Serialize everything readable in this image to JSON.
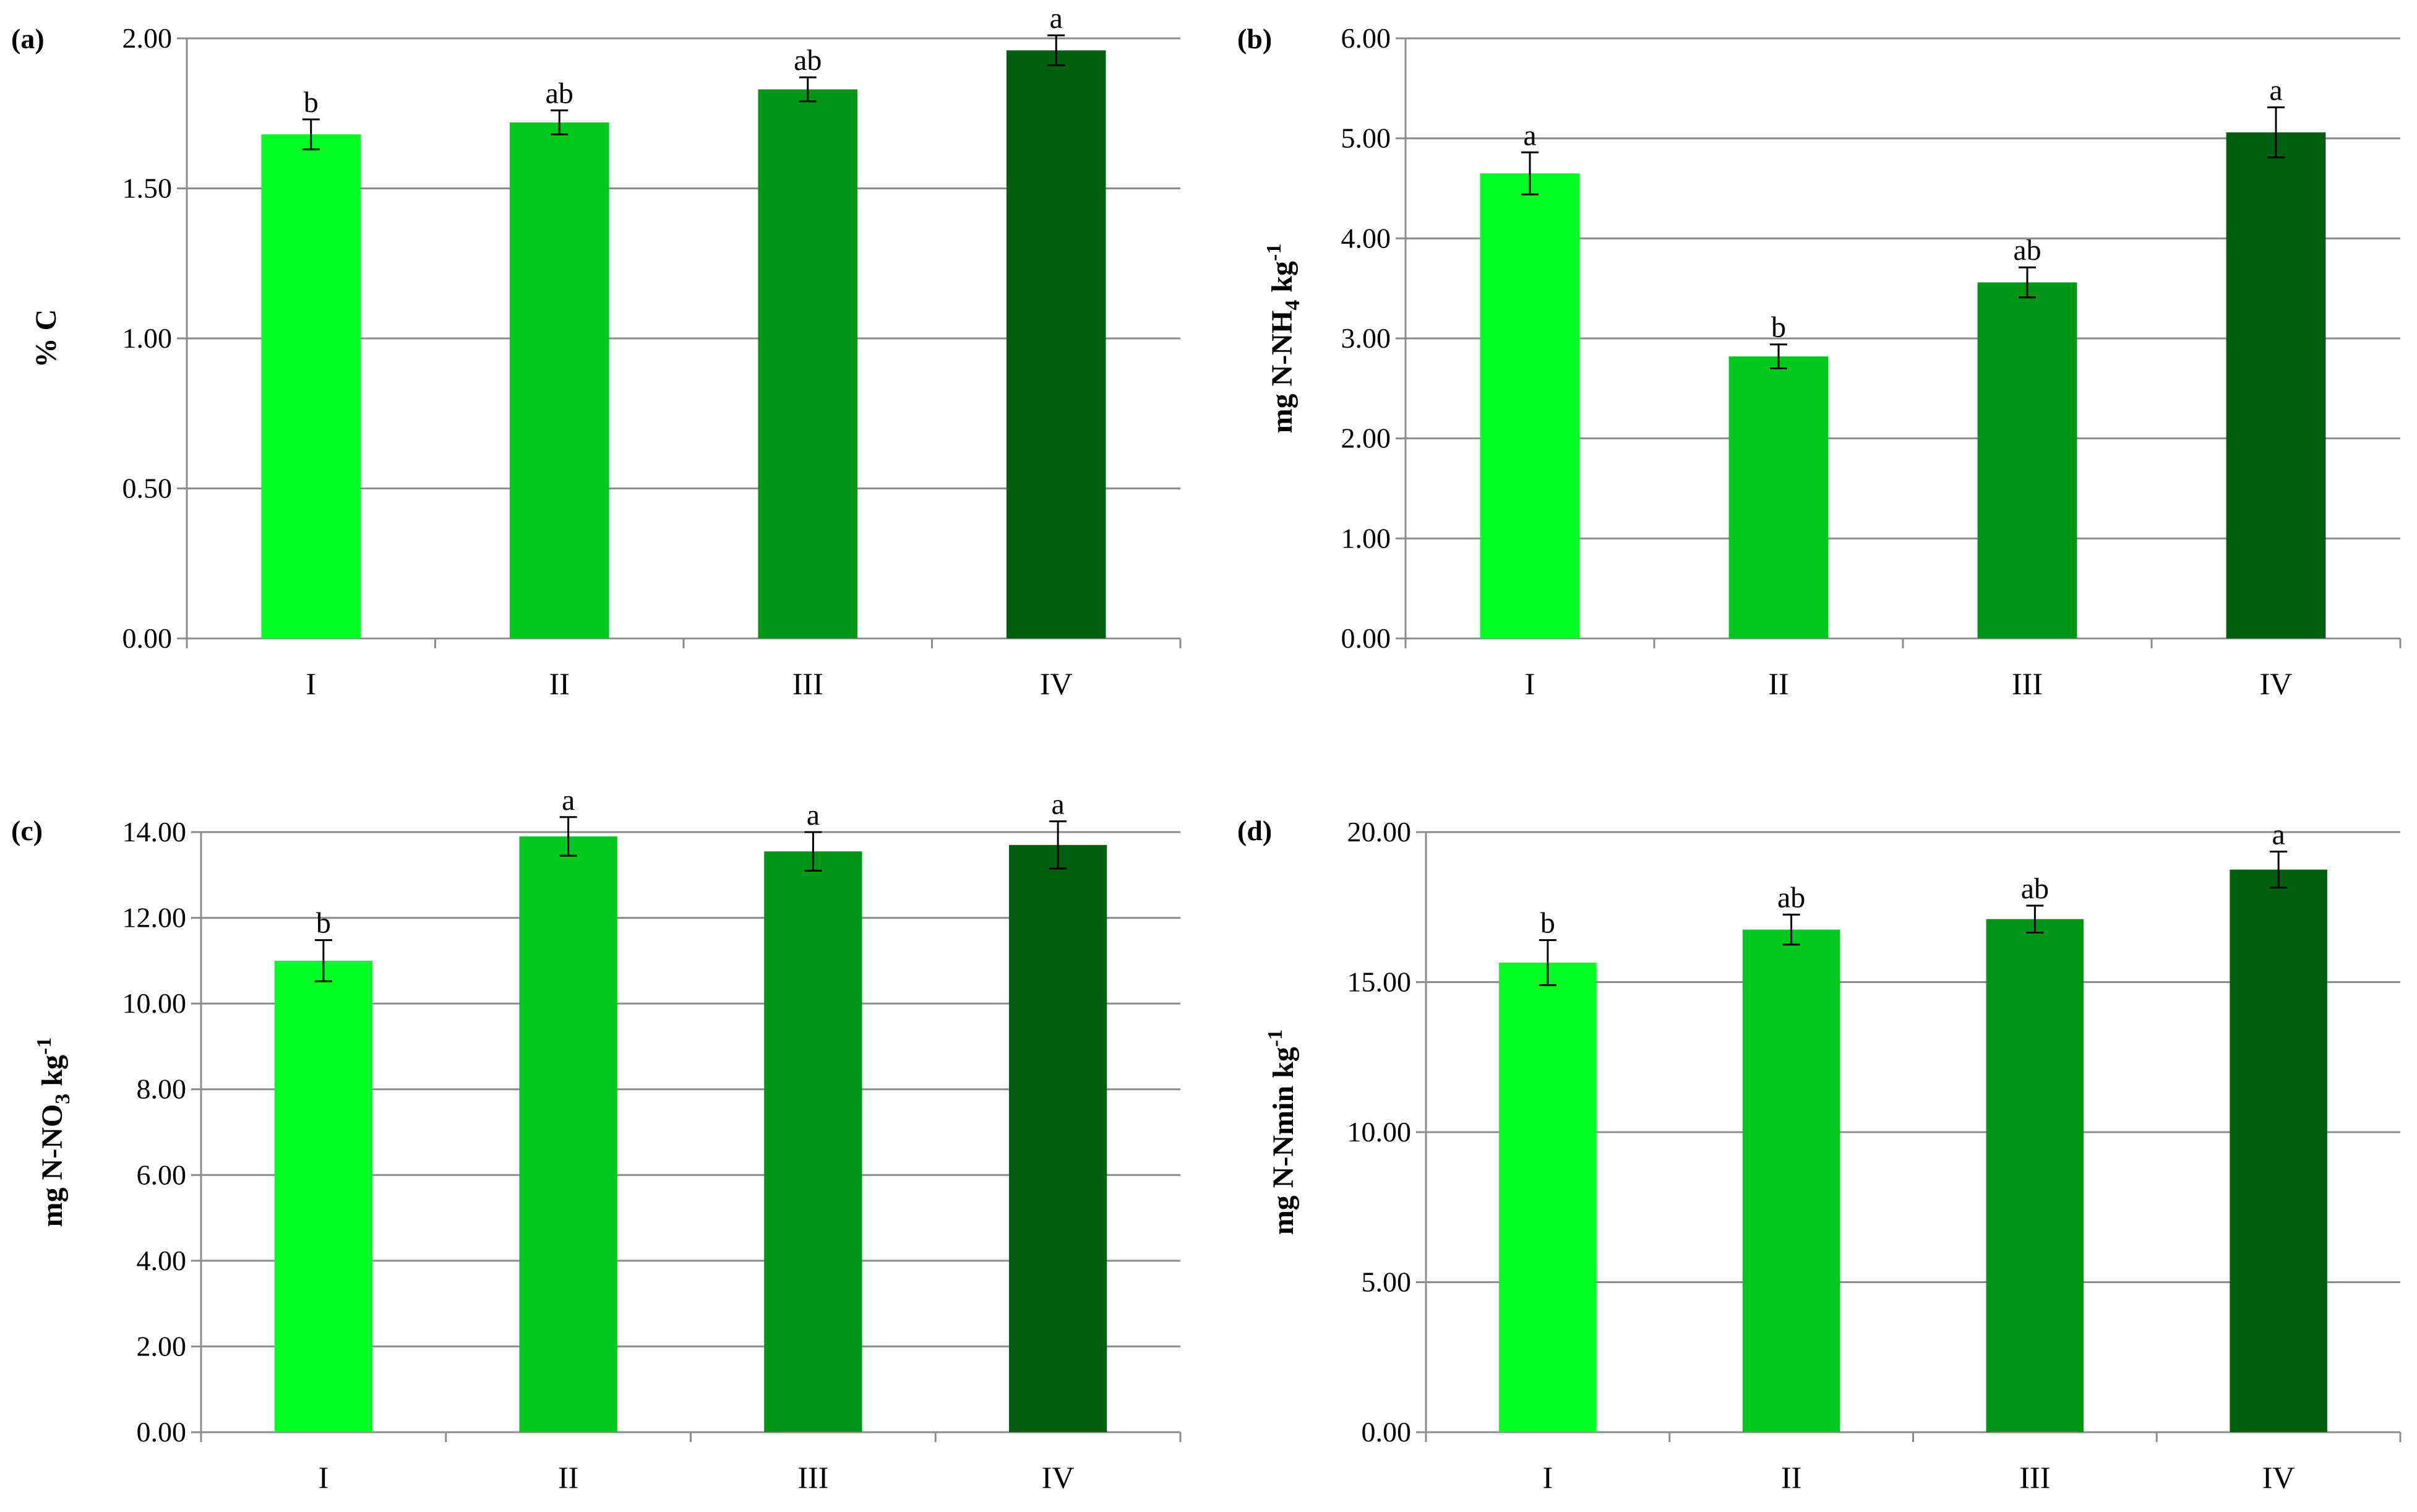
{
  "categories": [
    "I",
    "II",
    "III",
    "IV"
  ],
  "colors": {
    "bars": [
      "#00ff22",
      "#00c81d",
      "#009615",
      "#006010"
    ],
    "grid": "#8c8c8c",
    "axis": "#8c8c8c",
    "text": "#000000"
  },
  "chart_data": [
    {
      "type": "bar",
      "panel": "(a)",
      "ylabel": "% C",
      "ylabel_parts": [
        {
          "text": "% C",
          "shift": "none"
        }
      ],
      "ylim": [
        0,
        2.0
      ],
      "yticks": [
        "0.00",
        "0.50",
        "1.00",
        "1.50",
        "2.00"
      ],
      "categories": [
        "I",
        "II",
        "III",
        "IV"
      ],
      "values": [
        1.68,
        1.72,
        1.83,
        1.96
      ],
      "errors": [
        0.05,
        0.04,
        0.04,
        0.05
      ],
      "letters": [
        "b",
        "ab",
        "ab",
        "a"
      ]
    },
    {
      "type": "bar",
      "panel": "(b)",
      "ylabel": "mg N-NH4 kg-1",
      "ylabel_parts": [
        {
          "text": "mg N-NH",
          "shift": "none"
        },
        {
          "text": "4",
          "shift": "sub"
        },
        {
          "text": " kg",
          "shift": "none"
        },
        {
          "text": "-1",
          "shift": "super"
        }
      ],
      "ylim": [
        0,
        6.0
      ],
      "yticks": [
        "0.00",
        "1.00",
        "2.00",
        "3.00",
        "4.00",
        "5.00",
        "6.00"
      ],
      "categories": [
        "I",
        "II",
        "III",
        "IV"
      ],
      "values": [
        4.65,
        2.82,
        3.56,
        5.06
      ],
      "errors": [
        0.21,
        0.12,
        0.15,
        0.25
      ],
      "letters": [
        "a",
        "b",
        "ab",
        "a"
      ]
    },
    {
      "type": "bar",
      "panel": "(c)",
      "ylabel": "mg N-NO3 kg-1",
      "ylabel_parts": [
        {
          "text": "mg N-NO",
          "shift": "none"
        },
        {
          "text": "3",
          "shift": "sub"
        },
        {
          "text": " kg",
          "shift": "none"
        },
        {
          "text": "-1",
          "shift": "super"
        }
      ],
      "ylim": [
        0,
        14.0
      ],
      "yticks": [
        "0.00",
        "2.00",
        "4.00",
        "6.00",
        "8.00",
        "10.00",
        "12.00",
        "14.00"
      ],
      "categories": [
        "I",
        "II",
        "III",
        "IV"
      ],
      "values": [
        11.0,
        13.9,
        13.55,
        13.7
      ],
      "errors": [
        0.48,
        0.45,
        0.45,
        0.55
      ],
      "letters": [
        "b",
        "a",
        "a",
        "a"
      ]
    },
    {
      "type": "bar",
      "panel": "(d)",
      "ylabel": "mg N-Nmin kg-1",
      "ylabel_parts": [
        {
          "text": "mg N-Nmin kg",
          "shift": "none"
        },
        {
          "text": "-1",
          "shift": "super"
        }
      ],
      "ylim": [
        0,
        20.0
      ],
      "yticks": [
        "0.00",
        "5.00",
        "10.00",
        "15.00",
        "20.00"
      ],
      "categories": [
        "I",
        "II",
        "III",
        "IV"
      ],
      "values": [
        15.65,
        16.75,
        17.1,
        18.75
      ],
      "errors": [
        0.75,
        0.5,
        0.45,
        0.6
      ],
      "letters": [
        "b",
        "ab",
        "ab",
        "a"
      ]
    }
  ]
}
